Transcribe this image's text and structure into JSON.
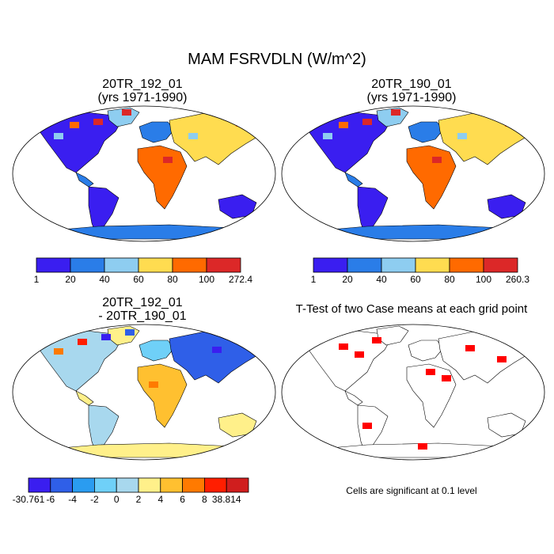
{
  "title": "MAM FSRVDLN (W/m^2)",
  "panels": [
    {
      "title_line1": "20TR_192_01",
      "title_line2": "(yrs 1971-1990)"
    },
    {
      "title_line1": "20TR_190_01",
      "title_line2": "(yrs 1971-1990)"
    },
    {
      "title_line1": "20TR_192_01",
      "title_line2": "- 20TR_190_01"
    },
    {
      "title_line1": "T-Test of two Case means at each grid point"
    }
  ],
  "significance_note": "Cells are significant at 0.1 level",
  "colors": {
    "land_low": "#3a1ef0",
    "ocean": "#ffffff",
    "significant": "#ff0000"
  },
  "chart_data": [
    {
      "type": "heatmap",
      "title": "20TR_192_01 (yrs 1971-1990)",
      "colorbar": {
        "labels": [
          "1",
          "20",
          "40",
          "60",
          "80",
          "100",
          "272.4"
        ],
        "colors": [
          "#3a1ef0",
          "#2a7de8",
          "#8ecdf0",
          "#ffdc50",
          "#ff6a00",
          "#dc2828"
        ],
        "min": 1,
        "max": 272.4
      }
    },
    {
      "type": "heatmap",
      "title": "20TR_190_01 (yrs 1971-1990)",
      "colorbar": {
        "labels": [
          "1",
          "20",
          "40",
          "60",
          "80",
          "100",
          "260.3"
        ],
        "colors": [
          "#3a1ef0",
          "#2a7de8",
          "#8ecdf0",
          "#ffdc50",
          "#ff6a00",
          "#dc2828"
        ],
        "min": 1,
        "max": 260.3
      }
    },
    {
      "type": "heatmap",
      "title": "20TR_192_01 - 20TR_190_01",
      "colorbar": {
        "labels": [
          "-30.761",
          "-6",
          "-4",
          "-2",
          "0",
          "2",
          "4",
          "6",
          "8",
          "38.814"
        ],
        "colors": [
          "#3a1ef0",
          "#2f5fe8",
          "#2a9cf0",
          "#6fd0f8",
          "#a8d8ee",
          "#fff08a",
          "#ffc030",
          "#ff7a00",
          "#ff1e00",
          "#d01e1e"
        ],
        "min": -30.761,
        "max": 38.814
      }
    },
    {
      "type": "heatmap",
      "title": "T-Test of two Case means at each grid point",
      "legend": "Cells are significant at 0.1 level",
      "colors": [
        "#ff0000"
      ]
    }
  ]
}
